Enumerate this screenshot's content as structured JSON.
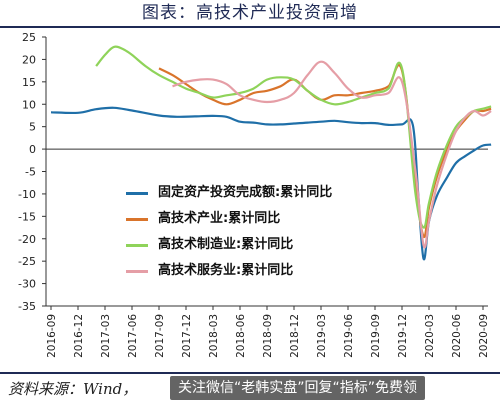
{
  "header": {
    "title": "图表：高技术产业投资高增"
  },
  "footer": {
    "source": "资料来源：Wind，",
    "promo": "关注微信“老韩实盘”回复“指标”免费领"
  },
  "chart_data": {
    "type": "line",
    "title": "图表：高技术产业投资高增",
    "ylim": [
      -35,
      25
    ],
    "yticks": [
      25,
      20,
      15,
      10,
      5,
      0,
      -5,
      -10,
      -15,
      -20,
      -25,
      -30,
      -35
    ],
    "x_categories": [
      "2016-09",
      "2016-12",
      "2017-03",
      "2017-06",
      "2017-09",
      "2017-12",
      "2018-03",
      "2018-06",
      "2018-09",
      "2018-12",
      "2019-03",
      "2019-06",
      "2019-09",
      "2019-12",
      "2020-03",
      "2020-06",
      "2020-09"
    ],
    "grid": false,
    "legend_position": "center-left",
    "series": [
      {
        "name": "固定资产投资完成额:累计同比",
        "color": "#1f6fa8",
        "x": [
          0,
          1,
          1.67,
          2.33,
          3,
          4,
          4.67,
          5.33,
          6,
          6.5,
          7,
          7.5,
          8,
          8.5,
          9,
          9.5,
          10,
          10.5,
          11,
          11.5,
          12,
          12.5,
          13,
          13.4,
          13.6,
          13.8,
          14,
          14.3,
          14.67,
          15,
          15.33,
          15.67,
          16,
          16.3
        ],
        "y": [
          8.2,
          8.1,
          8.9,
          9.2,
          8.6,
          7.5,
          7.2,
          7.3,
          7.4,
          7.2,
          6.1,
          5.9,
          5.5,
          5.5,
          5.7,
          5.9,
          6.1,
          6.3,
          6.0,
          5.8,
          5.8,
          5.4,
          5.5,
          5.4,
          -10,
          -24.5,
          -16.1,
          -10.3,
          -6.3,
          -3.1,
          -1.6,
          -0.3,
          0.8,
          1.0
        ]
      },
      {
        "name": "高技术产业:累计同比",
        "color": "#d9742b",
        "x": [
          4,
          4.5,
          5,
          5.5,
          6,
          6.5,
          7,
          7.5,
          8,
          8.5,
          9,
          9.5,
          10,
          10.5,
          11,
          11.5,
          12,
          12.5,
          13,
          13.5,
          13.8,
          14,
          14.3,
          14.67,
          15,
          15.33,
          15.67,
          16,
          16.3
        ],
        "y": [
          18.0,
          16.5,
          14.5,
          12.5,
          11.0,
          10.0,
          11.0,
          12.5,
          13.0,
          14.0,
          15.5,
          13.0,
          11.0,
          12.0,
          12.0,
          12.5,
          13.0,
          14.0,
          17.5,
          -8,
          -19.5,
          -13,
          -6,
          0,
          4,
          6.5,
          8.5,
          8.5,
          9.0
        ]
      },
      {
        "name": "高技术制造业:累计同比",
        "color": "#8fd35a",
        "x": [
          1.67,
          2,
          2.33,
          2.67,
          3,
          3.5,
          4,
          4.5,
          5,
          5.5,
          6,
          6.5,
          7,
          7.5,
          8,
          8.5,
          9,
          9.5,
          10,
          10.5,
          11,
          11.5,
          12,
          12.5,
          13,
          13.5,
          13.8,
          14,
          14.3,
          14.67,
          15,
          15.33,
          15.67,
          16,
          16.3
        ],
        "y": [
          18.5,
          21.0,
          22.8,
          22.3,
          21.0,
          18.5,
          16.5,
          15.0,
          13.5,
          12.5,
          11.5,
          12.0,
          12.5,
          13.5,
          15.5,
          16.0,
          15.5,
          13.0,
          11.0,
          10.0,
          10.5,
          11.5,
          12.5,
          13.5,
          18.0,
          -10,
          -17.5,
          -12,
          -5,
          1,
          5,
          7.0,
          8.5,
          9.0,
          9.5
        ]
      },
      {
        "name": "高技术服务业:累计同比",
        "color": "#e59ea6",
        "x": [
          4.5,
          5,
          5.5,
          6,
          6.5,
          7,
          7.5,
          8,
          8.5,
          9,
          9.5,
          10,
          10.5,
          11,
          11.5,
          12,
          12.5,
          13,
          13.5,
          13.8,
          14,
          14.3,
          14.67,
          15,
          15.33,
          15.67,
          16,
          16.3
        ],
        "y": [
          14.0,
          15.0,
          15.5,
          15.5,
          14.5,
          12.0,
          11.0,
          10.5,
          11.0,
          12.5,
          16.5,
          19.5,
          17.0,
          13.5,
          11.5,
          12.0,
          12.5,
          15.0,
          -5,
          -21.5,
          -16,
          -8,
          -1,
          4,
          7.0,
          8.5,
          7.5,
          8.5
        ]
      }
    ]
  }
}
